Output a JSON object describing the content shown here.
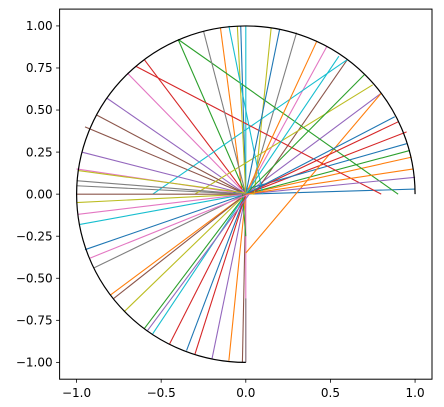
{
  "chart_data": {
    "type": "line",
    "title": "",
    "xlabel": "",
    "ylabel": "",
    "xlim": [
      -1.1,
      1.1
    ],
    "ylim": [
      -1.1,
      1.1
    ],
    "grid": false,
    "legend": "none",
    "x_ticks": [
      -1.0,
      -0.5,
      0.0,
      0.5,
      1.0
    ],
    "x_tick_labels": [
      "−1.0",
      "−0.5",
      "0.0",
      "0.5",
      "1.0"
    ],
    "y_ticks": [
      1.0,
      0.75,
      0.5,
      0.25,
      0.0,
      -0.25,
      -0.5,
      -0.75,
      -1.0
    ],
    "y_tick_labels": [
      "1.00",
      "0.75",
      "0.50",
      "0.25",
      "0.00",
      "−0.25",
      "−0.50",
      "−0.75",
      "−1.00"
    ],
    "boundary": {
      "kind": "half-circle (x ≤ 0) plus arc in quadrant I",
      "radius": 1.0,
      "center": [
        0,
        0
      ],
      "color": "#000000"
    },
    "colors": [
      "#1f77b4",
      "#ff7f0e",
      "#2ca02c",
      "#d62728",
      "#9467bd",
      "#8c564b",
      "#e377c2",
      "#7f7f7f",
      "#bcbd22",
      "#17becf"
    ],
    "segments": [
      {
        "x": [
          0.0,
          1.0
        ],
        "y": [
          0.0,
          0.03
        ]
      },
      {
        "x": [
          0.0,
          0.98
        ],
        "y": [
          0.0,
          0.22
        ]
      },
      {
        "x": [
          0.0,
          0.97
        ],
        "y": [
          0.0,
          0.26
        ]
      },
      {
        "x": [
          0.0,
          0.95
        ],
        "y": [
          0.0,
          0.37
        ]
      },
      {
        "x": [
          0.0,
          0.8
        ],
        "y": [
          0.0,
          0.6
        ]
      },
      {
        "x": [
          0.05,
          0.6
        ],
        "y": [
          0.0,
          0.8
        ]
      },
      {
        "x": [
          0.0,
          0.48
        ],
        "y": [
          0.0,
          0.88
        ]
      },
      {
        "x": [
          0.02,
          0.3
        ],
        "y": [
          0.0,
          0.96
        ]
      },
      {
        "x": [
          0.05,
          0.15
        ],
        "y": [
          0.0,
          0.99
        ]
      },
      {
        "x": [
          0.0,
          0.0
        ],
        "y": [
          0.0,
          1.0
        ]
      },
      {
        "x": [
          0.0,
          -0.03
        ],
        "y": [
          0.0,
          1.0
        ]
      },
      {
        "x": [
          -0.02,
          -0.15
        ],
        "y": [
          0.0,
          0.99
        ]
      },
      {
        "x": [
          0.0,
          -0.4
        ],
        "y": [
          0.0,
          0.92
        ]
      },
      {
        "x": [
          0.0,
          -0.6
        ],
        "y": [
          0.0,
          0.8
        ]
      },
      {
        "x": [
          0.0,
          -0.82
        ],
        "y": [
          0.0,
          0.57
        ]
      },
      {
        "x": [
          0.0,
          -0.95
        ],
        "y": [
          0.0,
          0.4
        ]
      },
      {
        "x": [
          0.0,
          -1.0
        ],
        "y": [
          0.0,
          0.15
        ]
      },
      {
        "x": [
          0.0,
          -1.0
        ],
        "y": [
          0.0,
          0.05
        ]
      },
      {
        "x": [
          0.0,
          -1.0
        ],
        "y": [
          0.0,
          -0.05
        ]
      },
      {
        "x": [
          0.0,
          -0.98
        ],
        "y": [
          0.0,
          -0.18
        ]
      },
      {
        "x": [
          0.0,
          -0.95
        ],
        "y": [
          0.0,
          -0.33
        ]
      },
      {
        "x": [
          0.0,
          -0.8
        ],
        "y": [
          0.0,
          -0.6
        ]
      },
      {
        "x": [
          0.0,
          -0.6
        ],
        "y": [
          0.0,
          -0.8
        ]
      },
      {
        "x": [
          0.0,
          -0.45
        ],
        "y": [
          0.0,
          -0.89
        ]
      },
      {
        "x": [
          0.0,
          -0.2
        ],
        "y": [
          0.0,
          -0.98
        ]
      },
      {
        "x": [
          0.0,
          -0.02
        ],
        "y": [
          0.0,
          -1.0
        ]
      },
      {
        "x": [
          0.0,
          0.0
        ],
        "y": [
          0.0,
          -1.0
        ]
      },
      {
        "x": [
          0.0,
          0.0
        ],
        "y": [
          -0.62,
          -1.0
        ]
      },
      {
        "x": [
          0.75,
          -0.3
        ],
        "y": [
          0.65,
          0.0
        ]
      },
      {
        "x": [
          0.6,
          -0.55
        ],
        "y": [
          0.8,
          0.0
        ]
      },
      {
        "x": [
          0.95,
          -0.1
        ],
        "y": [
          0.3,
          0.0
        ]
      },
      {
        "x": [
          0.8,
          0.0
        ],
        "y": [
          0.6,
          -0.35
        ]
      },
      {
        "x": [
          -0.4,
          0.9
        ],
        "y": [
          0.92,
          0.0
        ]
      },
      {
        "x": [
          -0.65,
          0.8
        ],
        "y": [
          0.76,
          0.0
        ]
      },
      {
        "x": [
          0.0,
          -0.97
        ],
        "y": [
          0.0,
          0.25
        ]
      },
      {
        "x": [
          0.0,
          -0.88
        ],
        "y": [
          0.0,
          0.47
        ]
      },
      {
        "x": [
          0.0,
          -0.7
        ],
        "y": [
          0.0,
          0.72
        ]
      },
      {
        "x": [
          0.0,
          -0.25
        ],
        "y": [
          0.0,
          0.97
        ]
      },
      {
        "x": [
          0.0,
          -0.05
        ],
        "y": [
          0.0,
          1.0
        ]
      },
      {
        "x": [
          0.1,
          -0.1
        ],
        "y": [
          0.0,
          1.0
        ]
      },
      {
        "x": [
          0.0,
          0.2
        ],
        "y": [
          0.0,
          0.98
        ]
      },
      {
        "x": [
          0.0,
          0.42
        ],
        "y": [
          0.0,
          0.91
        ]
      },
      {
        "x": [
          0.0,
          0.7
        ],
        "y": [
          0.0,
          0.71
        ]
      },
      {
        "x": [
          0.0,
          0.9
        ],
        "y": [
          0.0,
          0.43
        ]
      },
      {
        "x": [
          0.0,
          1.0
        ],
        "y": [
          0.0,
          0.1
        ]
      },
      {
        "x": [
          0.0,
          -1.0
        ],
        "y": [
          0.0,
          0.0
        ]
      },
      {
        "x": [
          0.0,
          -0.99
        ],
        "y": [
          0.0,
          -0.12
        ]
      },
      {
        "x": [
          0.0,
          -0.9
        ],
        "y": [
          0.0,
          -0.44
        ]
      },
      {
        "x": [
          0.0,
          -0.72
        ],
        "y": [
          0.0,
          -0.7
        ]
      },
      {
        "x": [
          0.0,
          -0.55
        ],
        "y": [
          0.0,
          -0.83
        ]
      },
      {
        "x": [
          0.0,
          -0.35
        ],
        "y": [
          0.0,
          -0.93
        ]
      },
      {
        "x": [
          0.0,
          -0.1
        ],
        "y": [
          0.0,
          -0.99
        ]
      },
      {
        "x": [
          -0.02,
          0.0
        ],
        "y": [
          0.0,
          -0.25
        ]
      },
      {
        "x": [
          0.0,
          -0.3
        ],
        "y": [
          0.0,
          -0.95
        ]
      },
      {
        "x": [
          0.02,
          -0.58
        ],
        "y": [
          0.0,
          -0.81
        ]
      },
      {
        "x": [
          0.0,
          -0.78
        ],
        "y": [
          0.0,
          -0.62
        ]
      },
      {
        "x": [
          0.02,
          -0.92
        ],
        "y": [
          0.0,
          -0.38
        ]
      },
      {
        "x": [
          0.0,
          -1.0
        ],
        "y": [
          0.0,
          0.08
        ]
      },
      {
        "x": [
          0.05,
          -0.99
        ],
        "y": [
          0.0,
          0.14
        ]
      },
      {
        "x": [
          0.0,
          0.55
        ],
        "y": [
          0.0,
          0.82
        ]
      },
      {
        "x": [
          0.0,
          0.88
        ],
        "y": [
          0.0,
          0.46
        ]
      },
      {
        "x": [
          0.0,
          0.99
        ],
        "y": [
          0.0,
          0.15
        ]
      }
    ]
  }
}
